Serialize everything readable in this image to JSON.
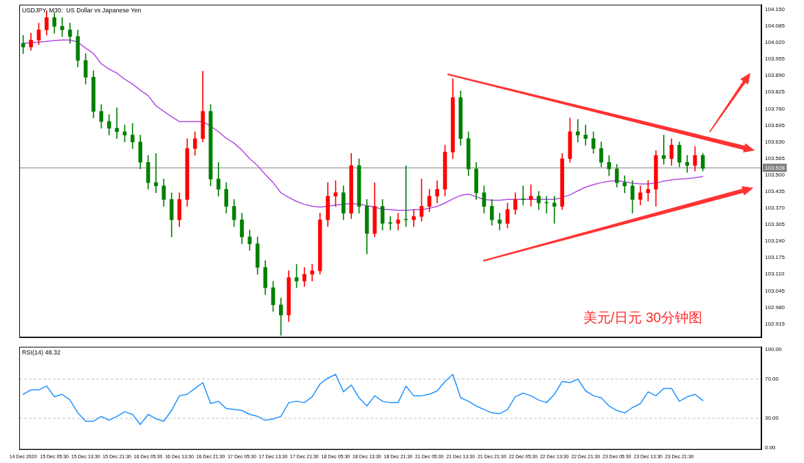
{
  "chart_data": [
    {
      "type": "candlestick",
      "title": "USDJPY, M30:  US Dollar vs Japanese Yen",
      "categories": [
        null,
        null,
        null,
        null,
        null,
        null,
        null,
        null,
        null,
        null,
        null,
        null,
        null,
        null,
        null,
        null,
        null,
        null,
        null,
        null,
        null,
        null,
        null,
        null,
        null,
        null,
        null,
        null,
        null,
        null,
        null,
        null,
        null,
        null,
        null,
        null,
        null,
        null,
        null,
        null,
        null,
        null,
        null,
        null,
        null,
        null,
        null,
        null,
        null,
        null,
        null,
        null,
        null,
        null,
        null,
        null,
        null,
        null,
        null,
        null,
        null,
        null,
        null,
        null,
        null,
        null,
        null,
        null,
        null,
        null,
        null,
        null,
        null,
        null,
        null,
        null,
        null,
        null,
        null,
        null,
        null,
        null,
        null,
        null,
        null,
        null,
        null,
        null,
        null,
        null,
        null,
        null,
        null,
        null,
        null
      ],
      "series": [
        {
          "type": "candlestick",
          "colors": [
            "#008000",
            "#ff0000",
            "#ff0000",
            "#ff0000",
            "#008000",
            "#008000",
            "#008000",
            "#008000",
            "#008000",
            "#008000",
            "#008000",
            "#008000",
            "#008000",
            "#008000",
            "#008000",
            "#008000",
            "#008000",
            "#008000",
            "#008000",
            "#008000",
            "#ff0000",
            "#ff0000",
            "#ff0000",
            "#ff0000",
            "#008000",
            "#008000",
            "#008000",
            "#008000",
            "#008000",
            "#008000",
            "#008000",
            "#008000",
            "#008000",
            "#008000",
            "#ff0000",
            "#008000",
            "#ff0000",
            "#ff0000",
            "#ff0000",
            "#ff0000",
            "#ff0000",
            "#008000",
            "#ff0000",
            "#008000",
            "#008000",
            "#ff0000",
            "#008000",
            "#008000",
            "#ff0000",
            "#008000",
            "#ff0000",
            "#ff0000",
            "#ff0000",
            "#ff0000",
            "#ff0000",
            "#ff0000",
            "#008000",
            "#008000",
            "#008000",
            "#008000",
            "#008000",
            "#008000",
            "#ff0000",
            "#ff0000",
            "#008000",
            "#ff0000",
            "#008000",
            "#008000",
            "#008000",
            "#ff0000",
            "#ff0000",
            "#008000",
            "#008000",
            "#008000",
            "#008000",
            "#008000",
            "#008000",
            "#008000",
            "#008000",
            "#ff0000",
            "#ff0000",
            "#ff0000",
            "#008000",
            "#ff0000",
            "#008000",
            "#008000",
            "#ff0000",
            "#008000",
            null,
            null,
            null,
            null,
            null,
            null,
            null
          ],
          "ohlc": [
            [
              104.017,
              104.049,
              103.977,
              104.003
            ],
            [
              104.003,
              104.057,
              103.99,
              104.03
            ],
            [
              104.03,
              104.097,
              104.012,
              104.07
            ],
            [
              104.07,
              104.145,
              104.049,
              104.118
            ],
            [
              104.118,
              104.137,
              104.057,
              104.084
            ],
            [
              104.084,
              104.118,
              104.044,
              104.07
            ],
            [
              104.07,
              104.097,
              104.017,
              104.044
            ],
            [
              104.044,
              104.07,
              103.924,
              103.95
            ],
            [
              103.95,
              103.977,
              103.857,
              103.884
            ],
            [
              103.884,
              103.91,
              103.724,
              103.75
            ],
            [
              103.75,
              103.777,
              103.684,
              103.71
            ],
            [
              103.71,
              103.737,
              103.657,
              103.684
            ],
            [
              103.684,
              103.764,
              103.643,
              103.67
            ],
            [
              103.67,
              103.697,
              103.63,
              103.657
            ],
            [
              103.657,
              103.702,
              103.604,
              103.63
            ],
            [
              103.63,
              103.657,
              103.524,
              103.55
            ],
            [
              103.55,
              103.577,
              103.444,
              103.47
            ],
            [
              103.47,
              103.585,
              103.43,
              103.457
            ],
            [
              103.457,
              103.484,
              103.377,
              103.404
            ],
            [
              103.404,
              103.43,
              103.257,
              103.324
            ],
            [
              103.324,
              103.43,
              103.297,
              103.404
            ],
            [
              103.404,
              103.643,
              103.377,
              103.604
            ],
            [
              103.604,
              103.67,
              103.577,
              103.643
            ],
            [
              103.643,
              103.908,
              103.63,
              103.75
            ],
            [
              103.75,
              103.777,
              103.457,
              103.484
            ],
            [
              103.484,
              103.55,
              103.417,
              103.444
            ],
            [
              103.444,
              103.47,
              103.35,
              103.377
            ],
            [
              103.377,
              103.404,
              103.297,
              103.324
            ],
            [
              103.324,
              103.35,
              103.23,
              103.257
            ],
            [
              103.257,
              103.284,
              103.204,
              103.23
            ],
            [
              103.23,
              103.257,
              103.11,
              103.137
            ],
            [
              103.137,
              103.164,
              103.03,
              103.057
            ],
            [
              103.057,
              103.083,
              102.964,
              102.99
            ],
            [
              102.99,
              103.017,
              102.87,
              102.95
            ],
            [
              102.95,
              103.124,
              102.924,
              103.097
            ],
            [
              103.097,
              103.15,
              103.057,
              103.083
            ],
            [
              103.083,
              103.137,
              103.062,
              103.11
            ],
            [
              103.11,
              103.15,
              103.083,
              103.124
            ],
            [
              103.124,
              103.35,
              103.11,
              103.324
            ],
            [
              103.324,
              103.47,
              103.297,
              103.417
            ],
            [
              103.417,
              103.478,
              103.377,
              103.43
            ],
            [
              103.43,
              103.457,
              103.324,
              103.35
            ],
            [
              103.35,
              103.585,
              103.329,
              103.537
            ],
            [
              103.537,
              103.564,
              103.35,
              103.377
            ],
            [
              103.377,
              103.404,
              103.19,
              103.27
            ],
            [
              103.27,
              103.47,
              103.257,
              103.377
            ],
            [
              103.377,
              103.404,
              103.284,
              103.31
            ],
            [
              103.31,
              103.337,
              103.284,
              103.31
            ],
            [
              103.31,
              103.35,
              103.284,
              103.324
            ],
            [
              103.324,
              103.537,
              103.297,
              103.324
            ],
            [
              103.324,
              103.364,
              103.297,
              103.337
            ],
            [
              103.337,
              103.484,
              103.318,
              103.377
            ],
            [
              103.377,
              103.444,
              103.356,
              103.417
            ],
            [
              103.417,
              103.478,
              103.39,
              103.444
            ],
            [
              103.444,
              103.617,
              103.417,
              103.59
            ],
            [
              103.59,
              103.878,
              103.564,
              103.804
            ],
            [
              103.804,
              103.83,
              103.617,
              103.643
            ],
            [
              103.643,
              103.67,
              103.497,
              103.524
            ],
            [
              103.524,
              103.55,
              103.404,
              103.43
            ],
            [
              103.43,
              103.457,
              103.35,
              103.377
            ],
            [
              103.377,
              103.404,
              103.302,
              103.324
            ],
            [
              103.324,
              103.35,
              103.284,
              103.31
            ],
            [
              103.31,
              103.39,
              103.292,
              103.364
            ],
            [
              103.364,
              103.43,
              103.345,
              103.404
            ],
            [
              103.404,
              103.457,
              103.382,
              103.404
            ],
            [
              103.404,
              103.462,
              103.377,
              103.417
            ],
            [
              103.417,
              103.436,
              103.364,
              103.39
            ],
            [
              103.39,
              103.417,
              103.35,
              103.39
            ],
            [
              103.39,
              103.417,
              103.31,
              103.377
            ],
            [
              103.377,
              103.585,
              103.364,
              103.564
            ],
            [
              103.564,
              103.724,
              103.55,
              103.67
            ],
            [
              103.67,
              103.718,
              103.63,
              103.657
            ],
            [
              103.657,
              103.697,
              103.617,
              103.643
            ],
            [
              103.643,
              103.67,
              103.585,
              103.604
            ],
            [
              103.604,
              103.63,
              103.532,
              103.55
            ],
            [
              103.55,
              103.577,
              103.497,
              103.524
            ],
            [
              103.524,
              103.542,
              103.452,
              103.47
            ],
            [
              103.47,
              103.497,
              103.43,
              103.457
            ],
            [
              103.457,
              103.478,
              103.35,
              103.404
            ],
            [
              103.404,
              103.457,
              103.382,
              103.43
            ],
            [
              103.43,
              103.478,
              103.398,
              103.444
            ],
            [
              103.444,
              103.596,
              103.377,
              103.577
            ],
            [
              103.577,
              103.657,
              103.542,
              103.564
            ],
            [
              103.564,
              103.643,
              103.537,
              103.617
            ],
            [
              103.617,
              103.63,
              103.532,
              103.55
            ],
            [
              103.55,
              103.577,
              103.51,
              103.537
            ],
            [
              103.537,
              103.612,
              103.516,
              103.577
            ],
            [
              103.577,
              103.585,
              103.516,
              103.526
            ],
            null,
            null,
            null,
            null,
            null,
            null,
            null
          ]
        },
        {
          "type": "line",
          "color": "#b04be0",
          "values": [
            104.017,
            104.02,
            104.022,
            104.025,
            104.028,
            104.03,
            104.03,
            104.022,
            103.998,
            103.977,
            103.937,
            103.916,
            103.9,
            103.876,
            103.857,
            103.833,
            103.812,
            103.772,
            103.75,
            103.729,
            103.71,
            103.71,
            103.71,
            103.71,
            103.692,
            103.67,
            103.644,
            103.625,
            103.598,
            103.564,
            103.537,
            103.502,
            103.47,
            103.43,
            103.412,
            103.396,
            103.385,
            103.377,
            103.374,
            103.377,
            103.382,
            103.385,
            103.388,
            103.385,
            103.38,
            103.374,
            103.366,
            103.364,
            103.361,
            103.361,
            103.364,
            103.364,
            103.369,
            103.377,
            103.39,
            103.406,
            103.42,
            103.425,
            103.414,
            103.404,
            103.401,
            103.401,
            103.404,
            103.404,
            103.404,
            103.404,
            103.404,
            103.404,
            103.404,
            103.412,
            103.422,
            103.438,
            103.452,
            103.462,
            103.47,
            103.476,
            103.478,
            103.473,
            103.468,
            103.465,
            103.465,
            103.468,
            103.476,
            103.481,
            103.484,
            103.486,
            103.489,
            103.494,
            null,
            null,
            null,
            null,
            null,
            null,
            null
          ]
        }
      ],
      "ylim": [
        102.862,
        104.169
      ],
      "yticks": [
        {
          "value": 102.915,
          "label": "102.915"
        },
        {
          "value": 102.98,
          "label": "102.980"
        },
        {
          "value": 103.045,
          "label": "103.045"
        },
        {
          "value": 103.11,
          "label": "103.110"
        },
        {
          "value": 103.175,
          "label": "103.175"
        },
        {
          "value": 103.24,
          "label": "103.240"
        },
        {
          "value": 103.305,
          "label": "103.305"
        },
        {
          "value": 103.37,
          "label": "103.370"
        },
        {
          "value": 103.435,
          "label": "103.435"
        },
        {
          "value": 103.5,
          "label": "103.500"
        },
        {
          "value": 103.565,
          "label": "103.565"
        },
        {
          "value": 103.63,
          "label": "103.630"
        },
        {
          "value": 103.695,
          "label": "103.695"
        },
        {
          "value": 103.76,
          "label": "103.760"
        },
        {
          "value": 103.825,
          "label": "103.825"
        },
        {
          "value": 103.89,
          "label": "103.890"
        },
        {
          "value": 103.955,
          "label": "103.955"
        },
        {
          "value": 104.02,
          "label": "104.020"
        },
        {
          "value": 104.085,
          "label": "104.085"
        },
        {
          "value": 104.15,
          "label": "104.150"
        }
      ],
      "ref_lines": [
        {
          "axis": "y",
          "value": 103.528,
          "label": "103.528",
          "color": "#808080"
        }
      ],
      "annotations": [
        "美元/日元 30分钟图"
      ],
      "tick_labels": "y"
    },
    {
      "type": "line",
      "title": "RSI(14) 48.32",
      "categories": [
        "14 Dec 2020",
        null,
        null,
        null,
        "15 Dec 05:30",
        null,
        null,
        null,
        "15 Dec 13:30",
        null,
        null,
        null,
        "15 Dec 21:30",
        null,
        null,
        null,
        "16 Dec 05:30",
        null,
        null,
        null,
        "16 Dec 13:30",
        null,
        null,
        null,
        "16 Dec 21:30",
        null,
        null,
        null,
        "17 Dec 05:30",
        null,
        null,
        null,
        "17 Dec 13:30",
        null,
        null,
        null,
        "17 Dec 21:30",
        null,
        null,
        null,
        "18 Dec 05:30",
        null,
        null,
        null,
        "18 Dec 13:30",
        null,
        null,
        null,
        "18 Dec 21:30",
        null,
        null,
        null,
        "21 Dec 05:30",
        null,
        null,
        null,
        "21 Dec 13:30",
        null,
        null,
        null,
        "21 Dec 21:30",
        null,
        null,
        null,
        "22 Dec 05:30",
        null,
        null,
        null,
        "22 Dec 13:30",
        null,
        null,
        null,
        "22 Dec 21:30",
        null,
        null,
        null,
        "23 Dec 05:30",
        null,
        null,
        null,
        "23 Dec 13:30",
        null,
        null,
        null,
        "23 Dec 21:30",
        null,
        null,
        null,
        null,
        null,
        null,
        null,
        null,
        null,
        null
      ],
      "series": [
        {
          "color": "#1e90ff",
          "values": [
            54.5,
            59,
            59,
            63,
            52,
            54.5,
            48.6,
            35.5,
            27,
            27,
            32,
            28,
            32,
            36.7,
            34,
            23.6,
            34,
            29.5,
            27,
            38,
            53,
            54.5,
            60.5,
            66.4,
            45,
            47.4,
            40,
            39,
            38,
            34,
            32,
            28,
            29.5,
            32,
            46,
            47.4,
            46,
            52,
            65,
            71,
            74.8,
            57,
            64,
            51,
            42.6,
            53,
            47.4,
            46,
            46,
            62.9,
            53,
            53,
            54.5,
            58,
            67.6,
            74.8,
            51,
            47.4,
            42.6,
            39,
            35.5,
            34.8,
            39,
            52,
            55.7,
            53,
            48.6,
            46,
            54.5,
            67.6,
            66.4,
            70,
            58,
            53,
            51,
            42.6,
            38,
            35.5,
            41,
            45,
            57,
            53,
            60.5,
            60.5,
            47.4,
            52,
            54.5,
            48.1,
            null,
            null,
            null,
            null,
            null,
            null,
            null
          ]
        }
      ],
      "ylim": [
        -2,
        103
      ],
      "yticks": [
        {
          "value": 0,
          "label": "0.00"
        },
        {
          "value": 30,
          "label": "30.00"
        },
        {
          "value": 70,
          "label": "70.00"
        },
        {
          "value": 100,
          "label": "100.00"
        }
      ],
      "ref_lines": [
        {
          "axis": "y",
          "value": 30,
          "color": "#c0c0c0",
          "line_style": "dashed"
        },
        {
          "axis": "y",
          "value": 70,
          "color": "#c0c0c0",
          "line_style": "dashed"
        }
      ]
    }
  ]
}
